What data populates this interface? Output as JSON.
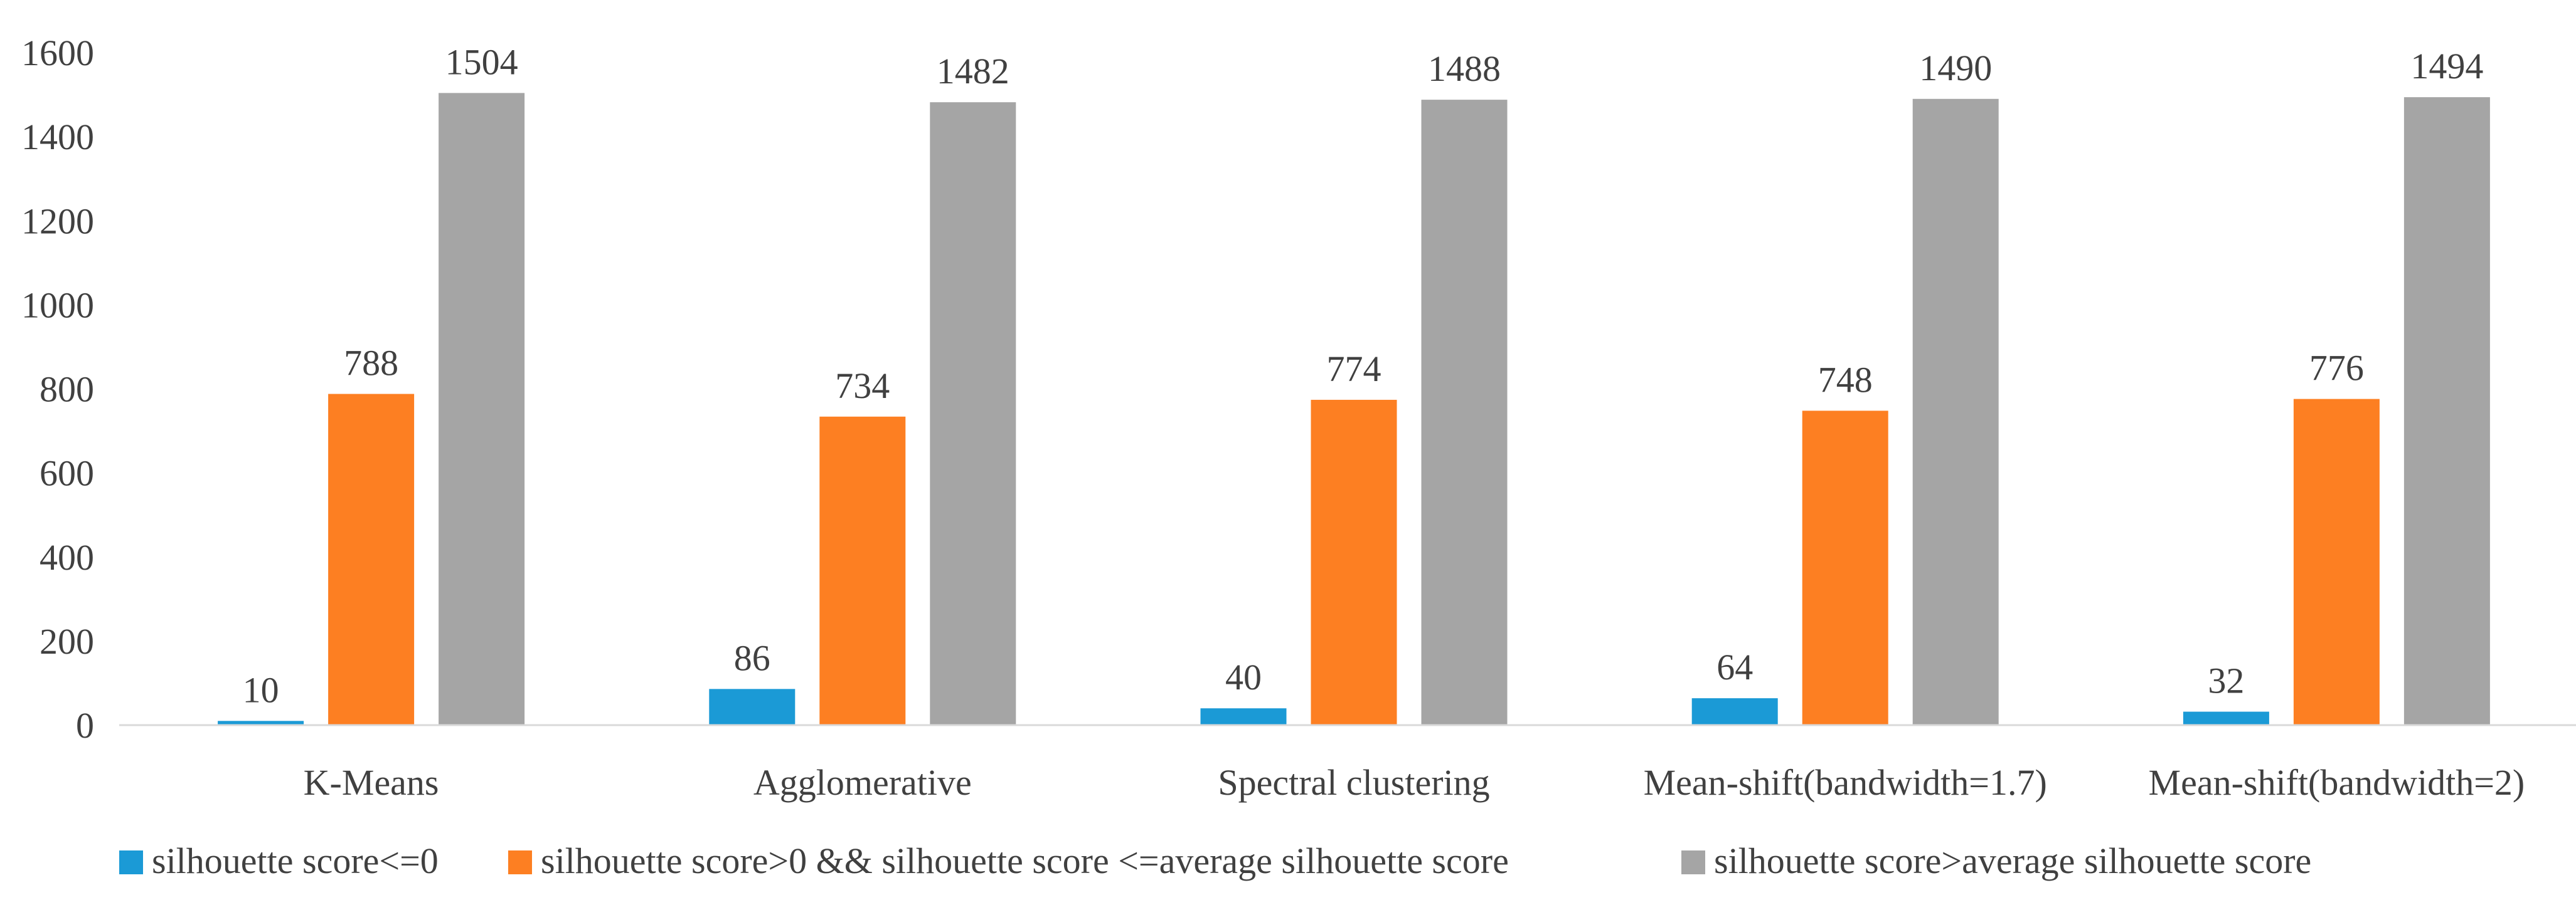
{
  "chart_data": {
    "type": "bar",
    "categories": [
      "K-Means",
      "Agglomerative",
      "Spectral clustering",
      "Mean-shift(bandwidth=1.7)",
      "Mean-shift(bandwidth=2)"
    ],
    "series": [
      {
        "name": "silhouette score<=0",
        "color": "#1b9ad6",
        "values": [
          10,
          86,
          40,
          64,
          32
        ]
      },
      {
        "name": "silhouette score>0 && silhouette score <=average silhouette score",
        "color": "#fd7f22",
        "values": [
          788,
          734,
          774,
          748,
          776
        ]
      },
      {
        "name": "silhouette score>average silhouette score",
        "color": "#a5a5a5",
        "values": [
          1504,
          1482,
          1488,
          1490,
          1494
        ]
      }
    ],
    "y_ticks": [
      "0",
      "200",
      "400",
      "600",
      "800",
      "1000",
      "1200",
      "1400",
      "1600"
    ],
    "ylim": [
      0,
      1600
    ],
    "grid": false,
    "legend": "bottom",
    "title": "",
    "xlabel": "",
    "ylabel": ""
  }
}
